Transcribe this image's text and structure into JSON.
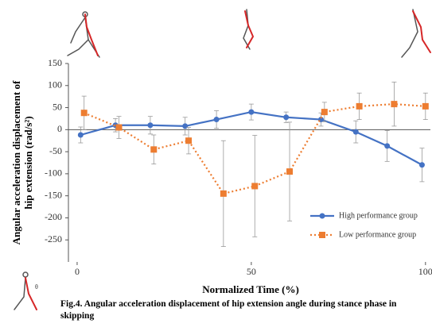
{
  "chart_data": {
    "type": "line",
    "xlabel": "Normalized Time (%)",
    "ylabel": [
      "Angular acceleration displacement of",
      "hip extension (rad/s²)"
    ],
    "caption": "Fig.4. Angular acceleration displacement of hip extension angle during stance phase in skipping",
    "xlim": [
      -2.5,
      100.5
    ],
    "xticks": [
      0,
      50,
      100
    ],
    "ylim": [
      -300,
      150
    ],
    "yticks": [
      150,
      100,
      50,
      0,
      -50,
      -100,
      -150,
      -200,
      -250
    ],
    "legend": "lower right",
    "series": [
      {
        "name": "High performance group",
        "color": "#4472c4",
        "style": "solid",
        "marker": "circle",
        "x": [
          1,
          11,
          21,
          31,
          40,
          50,
          60,
          70,
          80,
          89,
          99
        ],
        "values": [
          -12,
          10,
          10,
          8,
          23,
          40,
          28,
          23,
          -5,
          -37,
          -80
        ],
        "errors": [
          18,
          15,
          20,
          20,
          20,
          18,
          12,
          15,
          25,
          35,
          38
        ]
      },
      {
        "name": "Low performance group",
        "color": "#ed7d31",
        "style": "dotted",
        "marker": "square",
        "x": [
          2,
          12,
          22,
          32,
          42,
          51,
          61,
          71,
          81,
          91,
          100
        ],
        "values": [
          38,
          5,
          -45,
          -25,
          -145,
          -128,
          -95,
          40,
          53,
          58,
          53
        ],
        "errors": [
          38,
          25,
          33,
          30,
          120,
          115,
          112,
          22,
          30,
          50,
          30
        ]
      }
    ]
  }
}
